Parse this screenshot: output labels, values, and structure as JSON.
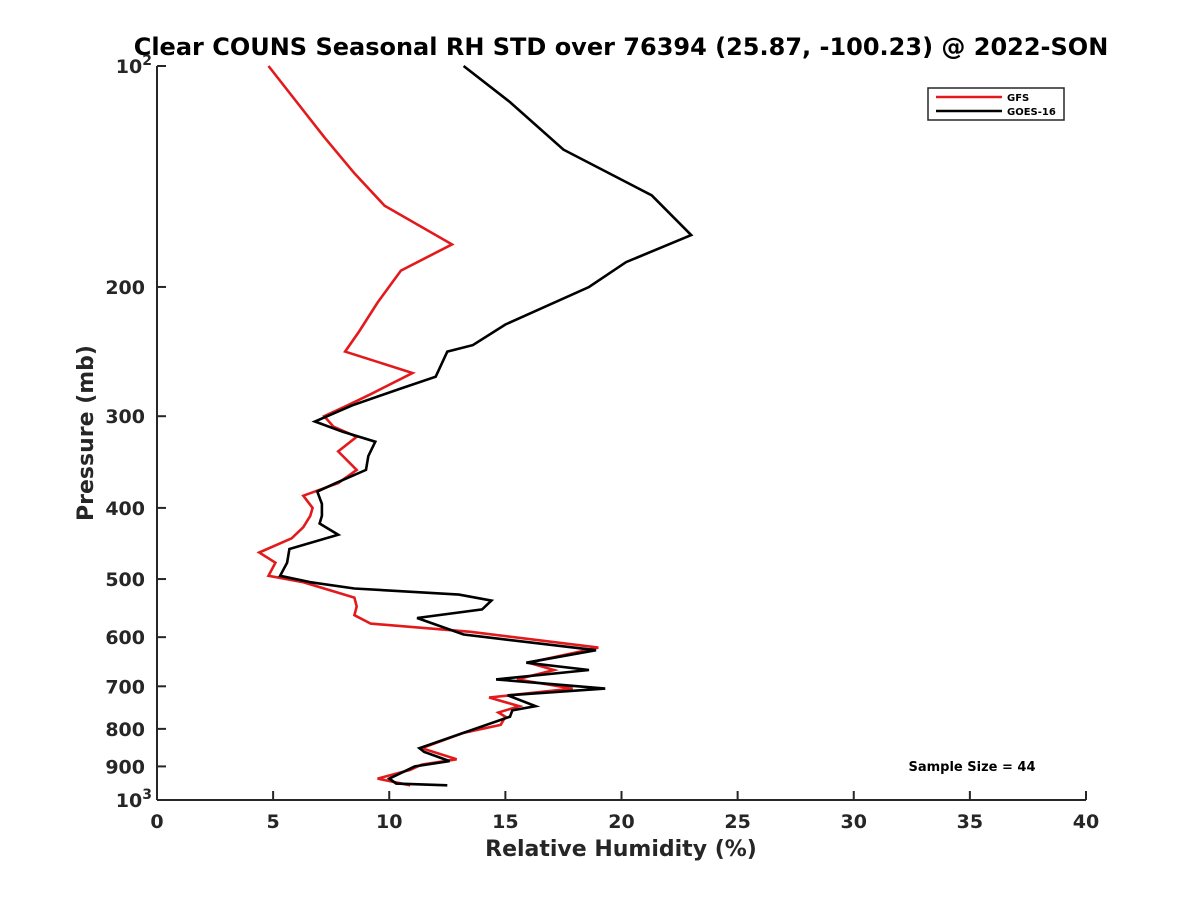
{
  "chart_data": {
    "type": "line",
    "title": "Clear COUNS Seasonal RH STD over 76394 (25.87, -100.23) @ 2022-SON",
    "xlabel": "Relative Humidity (%)",
    "ylabel": "Pressure (mb)",
    "xlim": [
      0,
      40
    ],
    "ylim": [
      100,
      1000
    ],
    "yscale": "log",
    "y_reversed": true,
    "x_ticks": [
      "0",
      "5",
      "10",
      "15",
      "20",
      "25",
      "30",
      "35",
      "40"
    ],
    "y_ticks": [
      {
        "value": 100,
        "label": "10",
        "sup": "2"
      },
      {
        "value": 200,
        "label": "200",
        "sup": ""
      },
      {
        "value": 300,
        "label": "300",
        "sup": ""
      },
      {
        "value": 400,
        "label": "400",
        "sup": ""
      },
      {
        "value": 500,
        "label": "500",
        "sup": ""
      },
      {
        "value": 600,
        "label": "600",
        "sup": ""
      },
      {
        "value": 700,
        "label": "700",
        "sup": ""
      },
      {
        "value": 800,
        "label": "800",
        "sup": ""
      },
      {
        "value": 900,
        "label": "900",
        "sup": ""
      },
      {
        "value": 1000,
        "label": "10",
        "sup": "3"
      }
    ],
    "legend_position": "top-right",
    "annotation": "Sample Size = 44",
    "series": [
      {
        "name": "GFS",
        "color": "#e31a1c",
        "points": [
          [
            4.8,
            100
          ],
          [
            7.2,
            125
          ],
          [
            8.5,
            140
          ],
          [
            9.8,
            155
          ],
          [
            12.7,
            175
          ],
          [
            10.5,
            190
          ],
          [
            9.5,
            210
          ],
          [
            8.7,
            230
          ],
          [
            8.1,
            245
          ],
          [
            11.0,
            262
          ],
          [
            9.2,
            280
          ],
          [
            8.2,
            290
          ],
          [
            7.2,
            300
          ],
          [
            7.6,
            310
          ],
          [
            8.6,
            320
          ],
          [
            7.8,
            335
          ],
          [
            8.6,
            355
          ],
          [
            7.8,
            370
          ],
          [
            6.3,
            385
          ],
          [
            6.7,
            400
          ],
          [
            6.6,
            410
          ],
          [
            6.3,
            425
          ],
          [
            5.8,
            440
          ],
          [
            4.4,
            460
          ],
          [
            5.1,
            475
          ],
          [
            4.8,
            495
          ],
          [
            6.3,
            505
          ],
          [
            8.5,
            530
          ],
          [
            8.6,
            545
          ],
          [
            8.5,
            560
          ],
          [
            9.2,
            575
          ],
          [
            13.5,
            590
          ],
          [
            19.0,
            620
          ],
          [
            16.0,
            650
          ],
          [
            17.1,
            665
          ],
          [
            15.5,
            685
          ],
          [
            17.9,
            705
          ],
          [
            14.3,
            725
          ],
          [
            15.6,
            745
          ],
          [
            14.7,
            760
          ],
          [
            15.0,
            770
          ],
          [
            14.8,
            790
          ],
          [
            13.2,
            810
          ],
          [
            11.4,
            850
          ],
          [
            12.9,
            880
          ],
          [
            11.4,
            895
          ],
          [
            10.9,
            910
          ],
          [
            9.5,
            935
          ],
          [
            10.9,
            955
          ]
        ]
      },
      {
        "name": "GOES-16",
        "color": "#000000",
        "points": [
          [
            13.2,
            100
          ],
          [
            15.2,
            112
          ],
          [
            17.5,
            130
          ],
          [
            21.3,
            150
          ],
          [
            23.0,
            170
          ],
          [
            20.2,
            185
          ],
          [
            18.6,
            200
          ],
          [
            15.0,
            225
          ],
          [
            13.6,
            240
          ],
          [
            12.5,
            245
          ],
          [
            12.0,
            265
          ],
          [
            10.5,
            275
          ],
          [
            8.4,
            290
          ],
          [
            6.8,
            305
          ],
          [
            8.0,
            315
          ],
          [
            9.4,
            325
          ],
          [
            9.1,
            340
          ],
          [
            9.0,
            355
          ],
          [
            7.7,
            370
          ],
          [
            6.9,
            380
          ],
          [
            7.1,
            395
          ],
          [
            7.1,
            410
          ],
          [
            7.0,
            420
          ],
          [
            7.8,
            435
          ],
          [
            5.7,
            455
          ],
          [
            5.6,
            475
          ],
          [
            5.3,
            495
          ],
          [
            6.6,
            505
          ],
          [
            8.5,
            515
          ],
          [
            13.0,
            525
          ],
          [
            14.4,
            535
          ],
          [
            14.0,
            550
          ],
          [
            11.2,
            565
          ],
          [
            13.2,
            595
          ],
          [
            18.9,
            625
          ],
          [
            15.9,
            650
          ],
          [
            18.6,
            665
          ],
          [
            14.6,
            685
          ],
          [
            19.3,
            705
          ],
          [
            15.1,
            720
          ],
          [
            16.3,
            745
          ],
          [
            15.3,
            755
          ],
          [
            15.2,
            770
          ],
          [
            11.3,
            850
          ],
          [
            11.5,
            860
          ],
          [
            12.6,
            885
          ],
          [
            11.1,
            900
          ],
          [
            10.0,
            935
          ],
          [
            10.3,
            950
          ],
          [
            12.5,
            955
          ]
        ]
      }
    ]
  }
}
